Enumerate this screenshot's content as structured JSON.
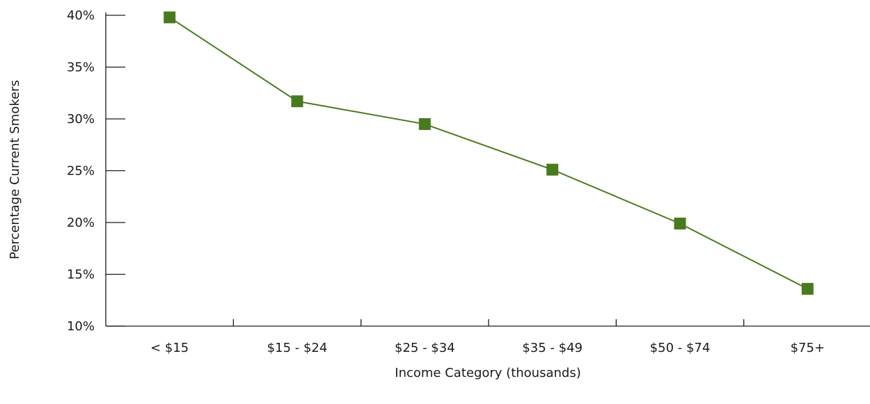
{
  "chart_data": {
    "type": "line",
    "title": "",
    "xlabel": "Income Category (thousands)",
    "ylabel": "Percentage Current Smokers",
    "categories": [
      "< $15",
      "$15 - $24",
      "$25 - $34",
      "$35 - $49",
      "$50 - $74",
      "$75+"
    ],
    "values": [
      39.8,
      31.7,
      29.5,
      25.1,
      19.9,
      13.6
    ],
    "ylim": [
      10,
      40
    ],
    "yticks": [
      "10%",
      "15%",
      "20%",
      "25%",
      "30%",
      "35%",
      "40%"
    ],
    "line_color": "#4a7a1e",
    "marker": "square",
    "grid": false,
    "legend": "none"
  }
}
